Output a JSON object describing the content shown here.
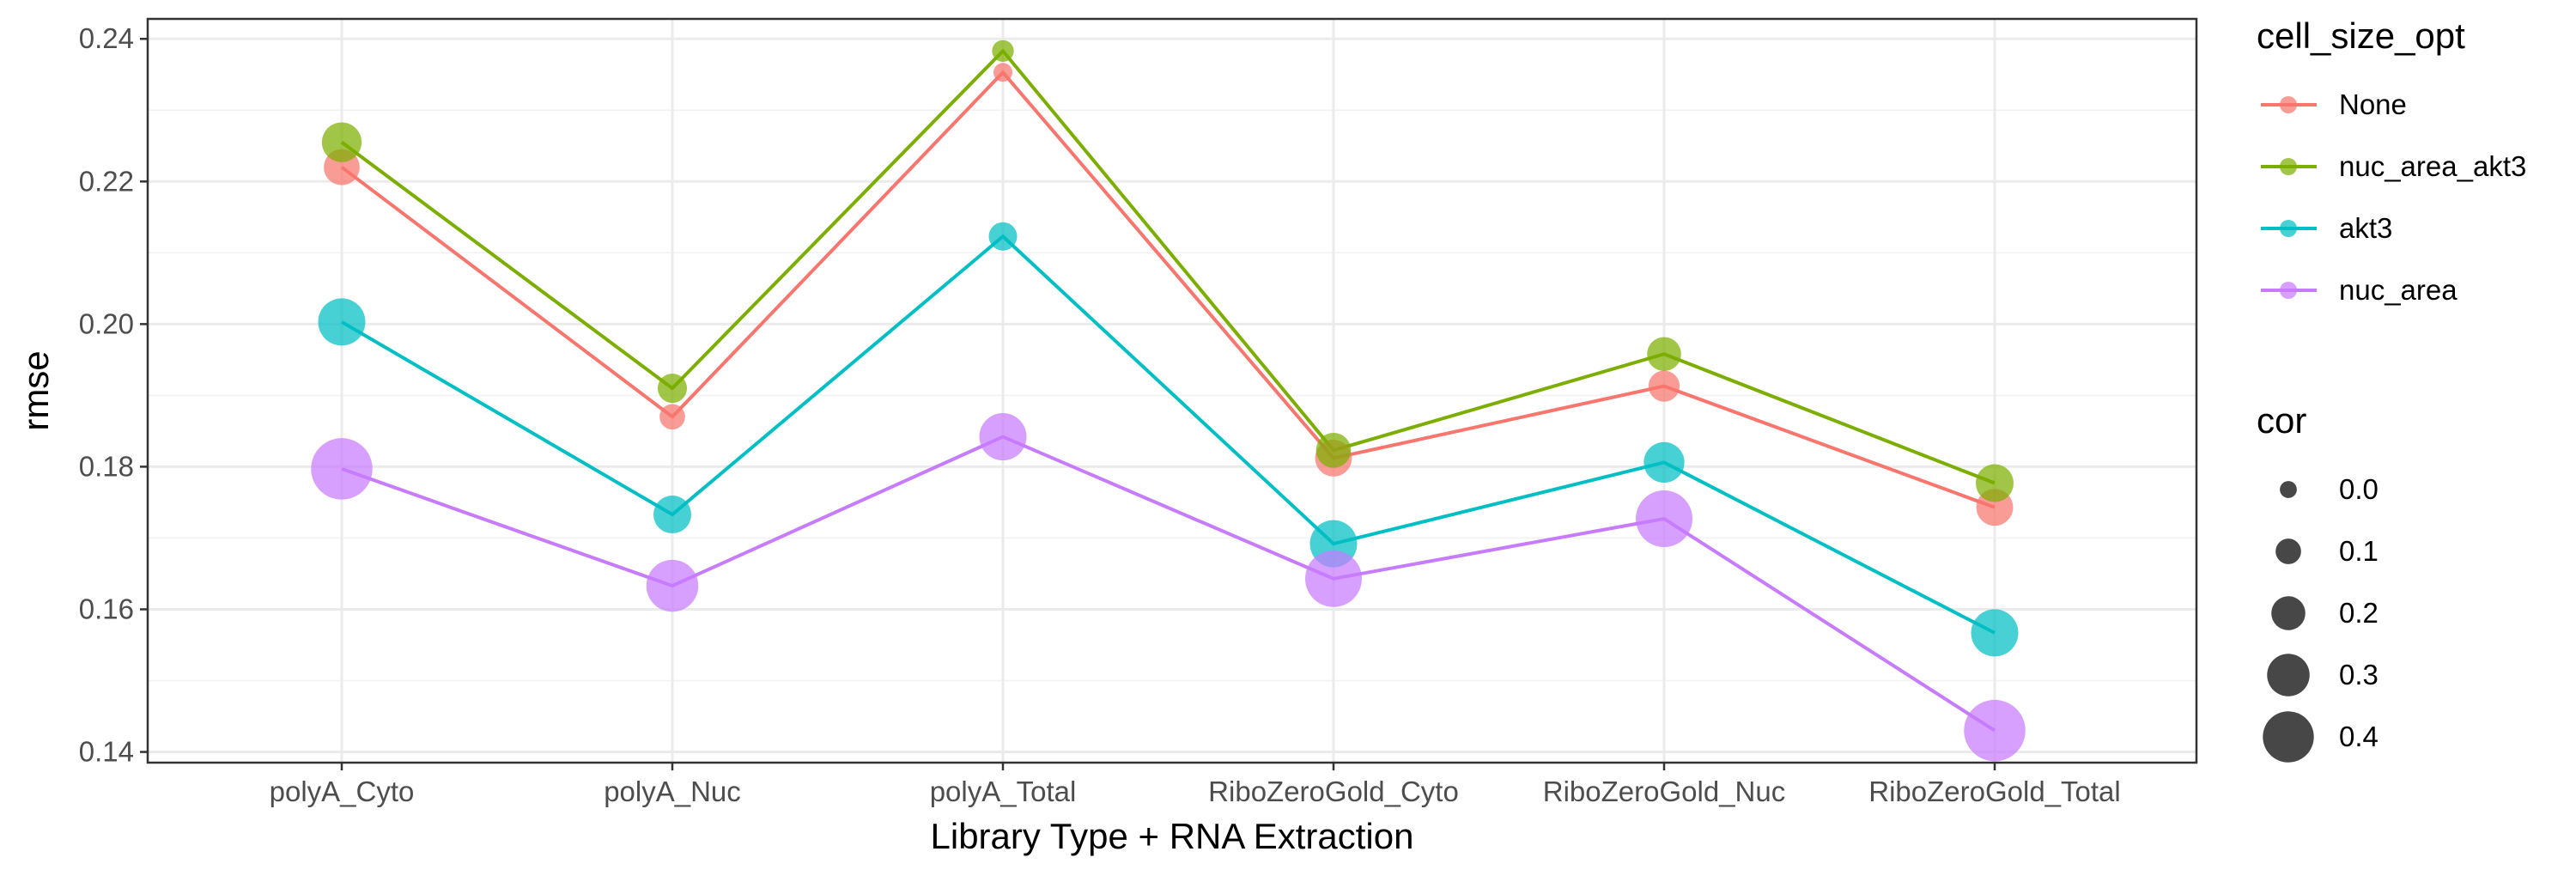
{
  "chart_data": {
    "type": "line",
    "xlabel": "Library Type + RNA Extraction",
    "ylabel": "rmse",
    "categories": [
      "polyA_Cyto",
      "polyA_Nuc",
      "polyA_Total",
      "RiboZeroGold_Cyto",
      "RiboZeroGold_Nuc",
      "RiboZeroGold_Total"
    ],
    "ylim": [
      0.1385,
      0.2428
    ],
    "yticks": [
      0.14,
      0.16,
      0.18,
      0.2,
      0.22,
      0.24
    ],
    "ytick_labels": [
      "0.14",
      "0.16",
      "0.18",
      "0.20",
      "0.22",
      "0.24"
    ],
    "grid": true,
    "legend_position": "right",
    "color_legend": {
      "title": "cell_size_opt",
      "entries": [
        {
          "label": "None",
          "color": "#F8766D"
        },
        {
          "label": "nuc_area_akt3",
          "color": "#7CAE00"
        },
        {
          "label": "akt3",
          "color": "#00BFC4"
        },
        {
          "label": "nuc_area",
          "color": "#C77CFF"
        }
      ]
    },
    "size_legend": {
      "title": "cor",
      "values": [
        0.0,
        0.1,
        0.2,
        0.3,
        0.4
      ],
      "labels": [
        "0.0",
        "0.1",
        "0.2",
        "0.3",
        "0.4"
      ]
    },
    "series": [
      {
        "name": "None",
        "color": "#F8766D",
        "values": [
          0.222,
          0.187,
          0.2353,
          0.1812,
          0.1913,
          0.1743
        ],
        "cor": [
          0.18,
          0.07,
          0.0,
          0.19,
          0.13,
          0.19
        ]
      },
      {
        "name": "nuc_area_akt3",
        "color": "#7CAE00",
        "values": [
          0.2255,
          0.191,
          0.2383,
          0.1823,
          0.1958,
          0.1777
        ],
        "cor": [
          0.22,
          0.11,
          0.03,
          0.17,
          0.16,
          0.2
        ]
      },
      {
        "name": "akt3",
        "color": "#00BFC4",
        "values": [
          0.2003,
          0.1733,
          0.2123,
          0.1692,
          0.1806,
          0.1567
        ],
        "cor": [
          0.3,
          0.2,
          0.1,
          0.3,
          0.23,
          0.3
        ]
      },
      {
        "name": "nuc_area",
        "color": "#C77CFF",
        "values": [
          0.1797,
          0.1633,
          0.1842,
          0.1643,
          0.1727,
          0.143
        ],
        "cor": [
          0.45,
          0.35,
          0.3,
          0.4,
          0.4,
          0.45
        ]
      }
    ]
  }
}
